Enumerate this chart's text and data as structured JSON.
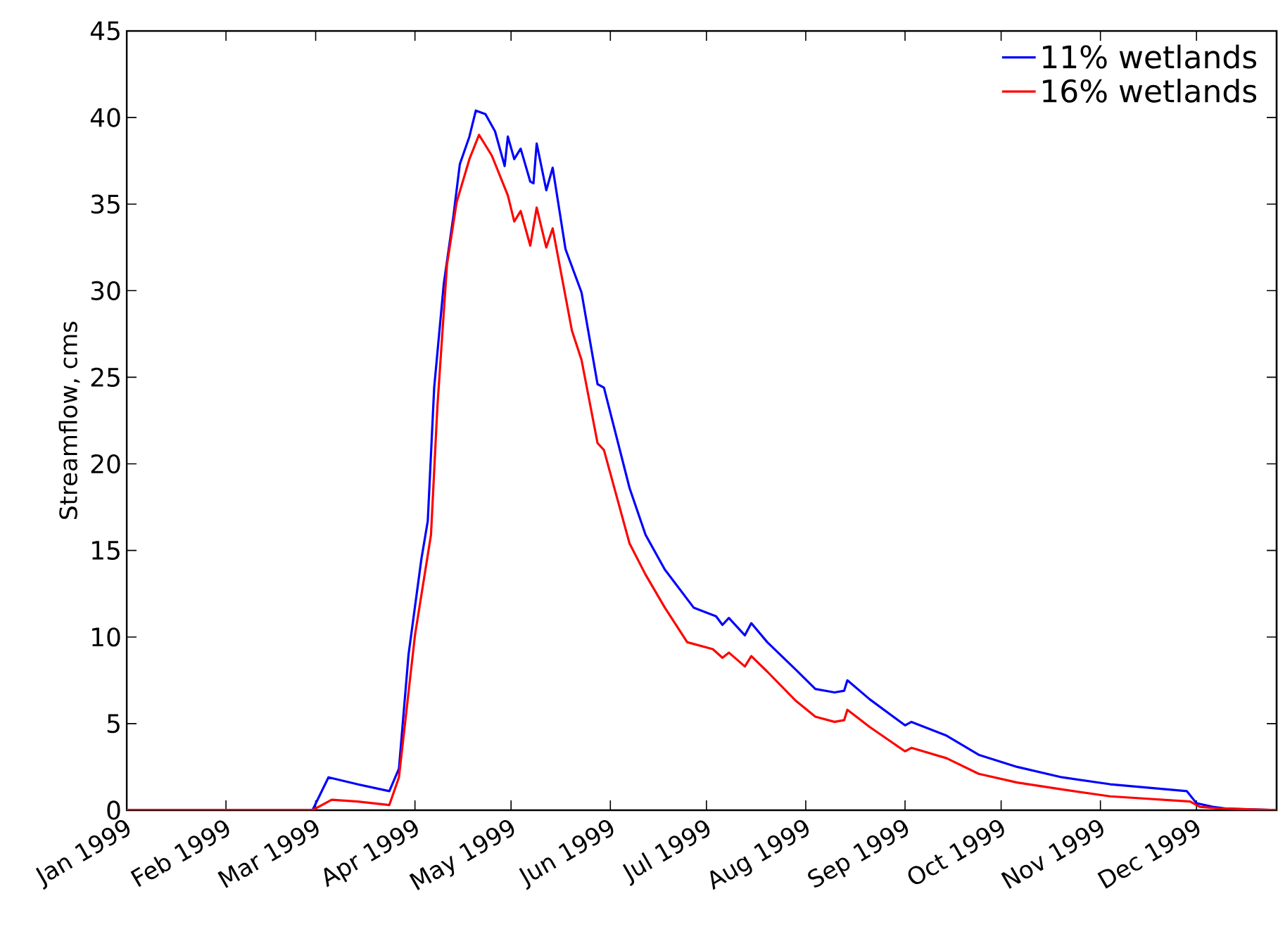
{
  "chart_data": {
    "type": "line",
    "ylabel": "Streamflow, cms",
    "xlim": [
      "1999-01-01",
      "1999-12-26"
    ],
    "xticks": [
      {
        "value": "1999-01-01",
        "label": "Jan 1999"
      },
      {
        "value": "1999-02-01",
        "label": "Feb 1999"
      },
      {
        "value": "1999-03-01",
        "label": "Mar 1999"
      },
      {
        "value": "1999-04-01",
        "label": "Apr 1999"
      },
      {
        "value": "1999-05-01",
        "label": "May 1999"
      },
      {
        "value": "1999-06-01",
        "label": "Jun 1999"
      },
      {
        "value": "1999-07-01",
        "label": "Jul 1999"
      },
      {
        "value": "1999-08-01",
        "label": "Aug 1999"
      },
      {
        "value": "1999-09-01",
        "label": "Sep 1999"
      },
      {
        "value": "1999-10-01",
        "label": "Oct 1999"
      },
      {
        "value": "1999-11-01",
        "label": "Nov 1999"
      },
      {
        "value": "1999-12-01",
        "label": "Dec 1999"
      }
    ],
    "ylim": [
      0,
      45
    ],
    "yticks": [
      0,
      5,
      10,
      15,
      20,
      25,
      30,
      35,
      40,
      45
    ],
    "legend": "top right",
    "series": [
      {
        "name": "11% wetlands",
        "color": "#0000ff",
        "x": [
          "1999-01-01",
          "1999-02-28",
          "1999-03-05",
          "1999-03-14",
          "1999-03-24",
          "1999-03-27",
          "1999-03-30",
          "1999-04-03",
          "1999-04-05",
          "1999-04-07",
          "1999-04-10",
          "1999-04-13",
          "1999-04-15",
          "1999-04-18",
          "1999-04-20",
          "1999-04-23",
          "1999-04-26",
          "1999-04-29",
          "1999-04-30",
          "1999-05-02",
          "1999-05-04",
          "1999-05-07",
          "1999-05-08",
          "1999-05-09",
          "1999-05-12",
          "1999-05-14",
          "1999-05-18",
          "1999-05-23",
          "1999-05-28",
          "1999-05-30",
          "1999-06-07",
          "1999-06-12",
          "1999-06-18",
          "1999-06-27",
          "1999-07-04",
          "1999-07-06",
          "1999-07-08",
          "1999-07-13",
          "1999-07-15",
          "1999-07-20",
          "1999-07-29",
          "1999-08-04",
          "1999-08-10",
          "1999-08-13",
          "1999-08-14",
          "1999-08-21",
          "1999-09-01",
          "1999-09-03",
          "1999-09-14",
          "1999-09-24",
          "1999-10-06",
          "1999-10-20",
          "1999-11-04",
          "1999-11-28",
          "1999-12-01",
          "1999-12-06",
          "1999-12-10",
          "1999-12-26"
        ],
        "values": [
          0,
          0,
          1.9,
          1.5,
          1.1,
          2.4,
          9.0,
          14.5,
          16.7,
          24.4,
          30.4,
          34.3,
          37.3,
          38.9,
          40.4,
          40.2,
          39.2,
          37.2,
          38.9,
          37.6,
          38.2,
          36.3,
          36.2,
          38.5,
          35.8,
          37.1,
          32.4,
          29.9,
          24.6,
          24.4,
          18.6,
          15.9,
          13.9,
          11.7,
          11.2,
          10.7,
          11.1,
          10.1,
          10.8,
          9.7,
          8.1,
          7.0,
          6.8,
          6.9,
          7.5,
          6.4,
          4.9,
          5.1,
          4.3,
          3.2,
          2.5,
          1.9,
          1.5,
          1.1,
          0.4,
          0.2,
          0.1,
          0
        ]
      },
      {
        "name": "16% wetlands",
        "color": "#ff0000",
        "x": [
          "1999-01-01",
          "1999-02-28",
          "1999-03-06",
          "1999-03-14",
          "1999-03-24",
          "1999-03-27",
          "1999-04-01",
          "1999-04-06",
          "1999-04-08",
          "1999-04-11",
          "1999-04-14",
          "1999-04-18",
          "1999-04-21",
          "1999-04-25",
          "1999-04-30",
          "1999-05-02",
          "1999-05-04",
          "1999-05-07",
          "1999-05-09",
          "1999-05-12",
          "1999-05-14",
          "1999-05-20",
          "1999-05-23",
          "1999-05-28",
          "1999-05-30",
          "1999-06-07",
          "1999-06-12",
          "1999-06-18",
          "1999-06-25",
          "1999-07-03",
          "1999-07-06",
          "1999-07-08",
          "1999-07-13",
          "1999-07-15",
          "1999-07-20",
          "1999-07-29",
          "1999-08-04",
          "1999-08-10",
          "1999-08-13",
          "1999-08-14",
          "1999-08-21",
          "1999-09-01",
          "1999-09-03",
          "1999-09-14",
          "1999-09-24",
          "1999-10-06",
          "1999-10-20",
          "1999-11-04",
          "1999-11-29",
          "1999-12-02",
          "1999-12-08",
          "1999-12-26"
        ],
        "values": [
          0,
          0,
          0.6,
          0.5,
          0.3,
          1.9,
          10.1,
          15.9,
          23.3,
          31.5,
          35.1,
          37.6,
          39.0,
          37.8,
          35.5,
          34.0,
          34.6,
          32.6,
          34.8,
          32.5,
          33.6,
          27.7,
          26.0,
          21.2,
          20.8,
          15.4,
          13.6,
          11.7,
          9.7,
          9.3,
          8.8,
          9.1,
          8.3,
          8.9,
          8.0,
          6.3,
          5.4,
          5.1,
          5.2,
          5.8,
          4.8,
          3.4,
          3.6,
          3.0,
          2.1,
          1.6,
          1.2,
          0.8,
          0.5,
          0.2,
          0.1,
          0
        ]
      }
    ]
  }
}
